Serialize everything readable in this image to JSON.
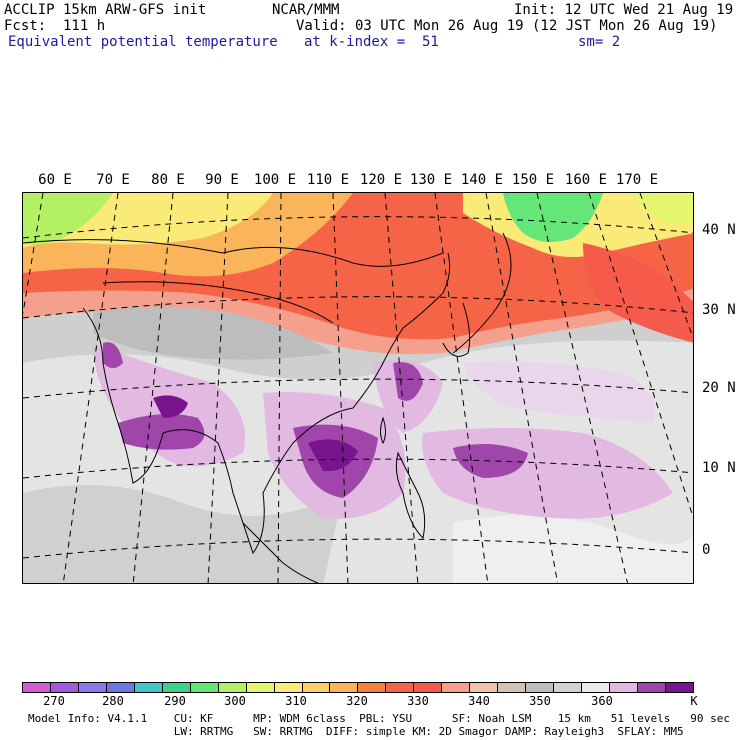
{
  "header": {
    "line1_left": "ACCLIP 15km ARW-GFS init",
    "line1_center": "NCAR/MMM",
    "line1_right": "Init: 12 UTC Wed 21 Aug 19",
    "line2_left": "Fcst:  111 h",
    "line2_right": "Valid: 03 UTC Mon 26 Aug 19 (12 JST Mon 26 Aug 19)",
    "line3_left": "Equivalent potential temperature",
    "line3_center": "at k-index =  51",
    "line3_right": "sm= 2"
  },
  "map": {
    "lon_labels": [
      "60 E",
      "70 E",
      "80 E",
      "90 E",
      "100 E",
      "110 E",
      "120 E",
      "130 E",
      "140 E",
      "150 E",
      "160 E",
      "170 E"
    ],
    "lat_labels": [
      "40 N",
      "30 N",
      "20 N",
      "10 N",
      "0"
    ]
  },
  "colorbar": {
    "colors": [
      "#d25ad2",
      "#a35ad8",
      "#8c78e6",
      "#6e78dc",
      "#3cc8c8",
      "#3cd28c",
      "#64e678",
      "#b4f064",
      "#e6f56e",
      "#faeb78",
      "#fad264",
      "#fab45a",
      "#f5823c",
      "#f56446",
      "#f55a4b",
      "#f5a08c",
      "#f0c3aa",
      "#d2c3b4",
      "#bebebe",
      "#d2d2d2",
      "#ebebeb",
      "#e1b9e1",
      "#a046aa",
      "#78148c"
    ],
    "ticks": [
      "270",
      "280",
      "290",
      "300",
      "310",
      "320",
      "330",
      "340",
      "350",
      "360",
      "K"
    ]
  },
  "footer": {
    "line1": "Model Info: V4.1.1    CU: KF      MP: WDM 6class  PBL: YSU      SF: Noah LSM    15 km   51 levels   90 sec",
    "line2": "                      LW: RRTMG   SW: RRTMG  DIFF: simple KM: 2D Smagor DAMP: Rayleigh3  SFLAY: MM5"
  }
}
